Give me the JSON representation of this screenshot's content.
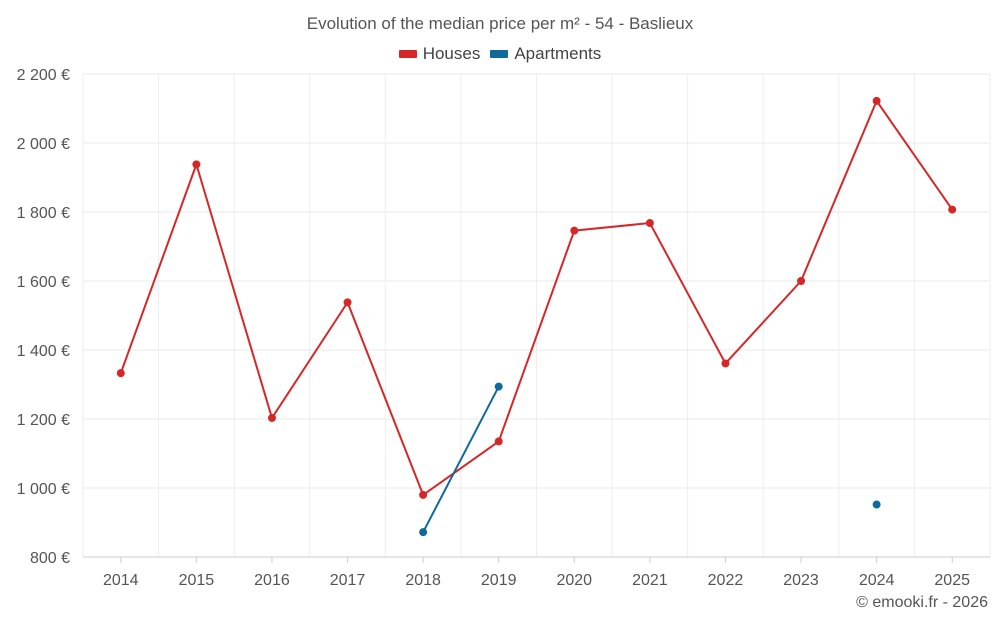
{
  "chart_data": {
    "type": "line",
    "title": "Evolution of the median price per m² - 54 - Baslieux",
    "categories": [
      "2014",
      "2015",
      "2016",
      "2017",
      "2018",
      "2019",
      "2020",
      "2021",
      "2022",
      "2023",
      "2024",
      "2025"
    ],
    "series": [
      {
        "name": "Houses",
        "color": "#d62728",
        "values": [
          1333,
          1938,
          1203,
          1538,
          980,
          1135,
          1746,
          1768,
          1361,
          1600,
          2122,
          1807
        ]
      },
      {
        "name": "Apartments",
        "color": "#0f6a9b",
        "values": [
          null,
          null,
          null,
          null,
          872,
          1294,
          null,
          null,
          null,
          null,
          952,
          null
        ]
      }
    ],
    "y_ticks": [
      "800 €",
      "1 000 €",
      "1 200 €",
      "1 400 €",
      "1 600 €",
      "1 800 €",
      "2 000 €",
      "2 200 €"
    ],
    "ylim": [
      800,
      2200
    ],
    "grid": true,
    "legend_position": "top-center"
  },
  "footer": {
    "credit": "© emooki.fr - 2026"
  }
}
